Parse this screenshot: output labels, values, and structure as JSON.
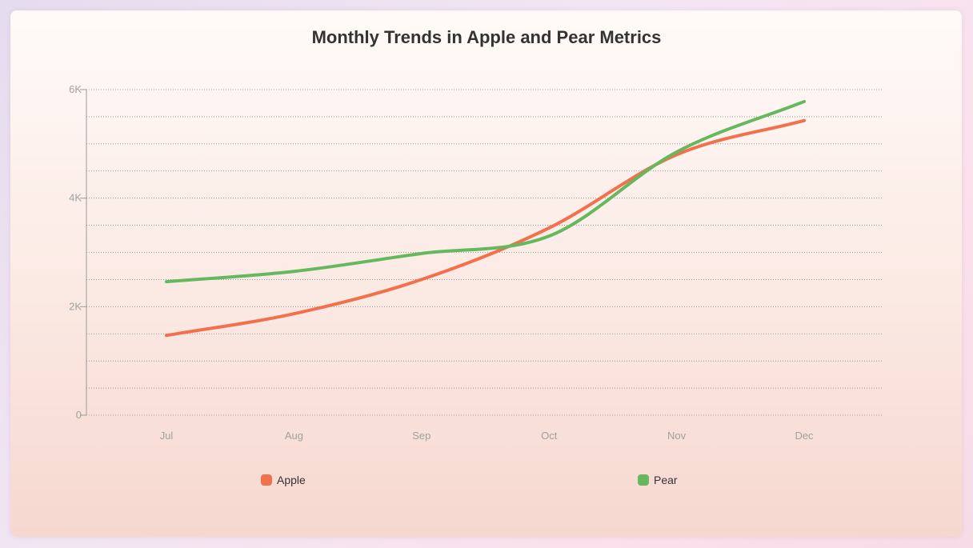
{
  "chart_data": {
    "type": "line",
    "title": "Monthly Trends in Apple and Pear Metrics",
    "categories": [
      "Jul",
      "Aug",
      "Sep",
      "Oct",
      "Nov",
      "Dec"
    ],
    "ylim": [
      0,
      6000
    ],
    "yticks": [
      {
        "value": 0,
        "label": "0"
      },
      {
        "value": 2000,
        "label": "2K"
      },
      {
        "value": 4000,
        "label": "4K"
      },
      {
        "value": 6000,
        "label": "6K"
      }
    ],
    "grid": true,
    "legend_position": "bottom",
    "xlabel": "",
    "ylabel": "",
    "series": [
      {
        "name": "Apple",
        "color": "#f2704b",
        "values": [
          1470,
          1870,
          2500,
          3450,
          4800,
          5430
        ]
      },
      {
        "name": "Pear",
        "color": "#66b85c",
        "values": [
          2460,
          2650,
          2980,
          3300,
          4850,
          5780
        ]
      }
    ]
  }
}
